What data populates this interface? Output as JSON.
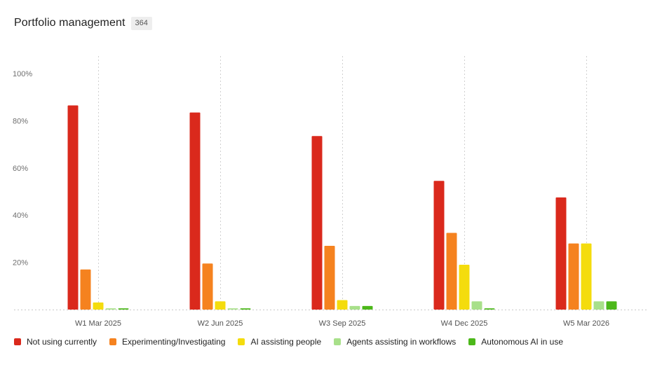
{
  "header": {
    "title": "Portfolio management",
    "count": "364"
  },
  "chart_data": {
    "type": "bar",
    "title": "Portfolio management",
    "categories": [
      "W1 Mar 2025",
      "W2 Jun 2025",
      "W3 Sep 2025",
      "W4 Dec 2025",
      "W5 Mar 2026"
    ],
    "ylim": [
      0,
      100
    ],
    "yticks": [
      20,
      40,
      60,
      80,
      100
    ],
    "ytick_labels": [
      "20%",
      "40%",
      "60%",
      "80%",
      "100%"
    ],
    "grid": "vertical dotted",
    "legend_position": "bottom-left",
    "series": [
      {
        "name": "Not using currently",
        "color": "#da291c",
        "values": [
          86.5,
          83.5,
          73.5,
          54.5,
          47.5
        ]
      },
      {
        "name": "Experimenting/Investigating",
        "color": "#f5821f",
        "values": [
          17,
          19.5,
          27,
          32.5,
          28
        ]
      },
      {
        "name": "AI assisting people",
        "color": "#f4dc0d",
        "values": [
          3,
          3.5,
          4,
          19,
          28
        ]
      },
      {
        "name": "Agents assisting in workflows",
        "color": "#a8e08a",
        "values": [
          0.5,
          0.5,
          1.5,
          3.5,
          3.5
        ]
      },
      {
        "name": "Autonomous AI in use",
        "color": "#4cb81a",
        "values": [
          0.5,
          0.5,
          1.5,
          0.5,
          3.5
        ]
      }
    ]
  }
}
